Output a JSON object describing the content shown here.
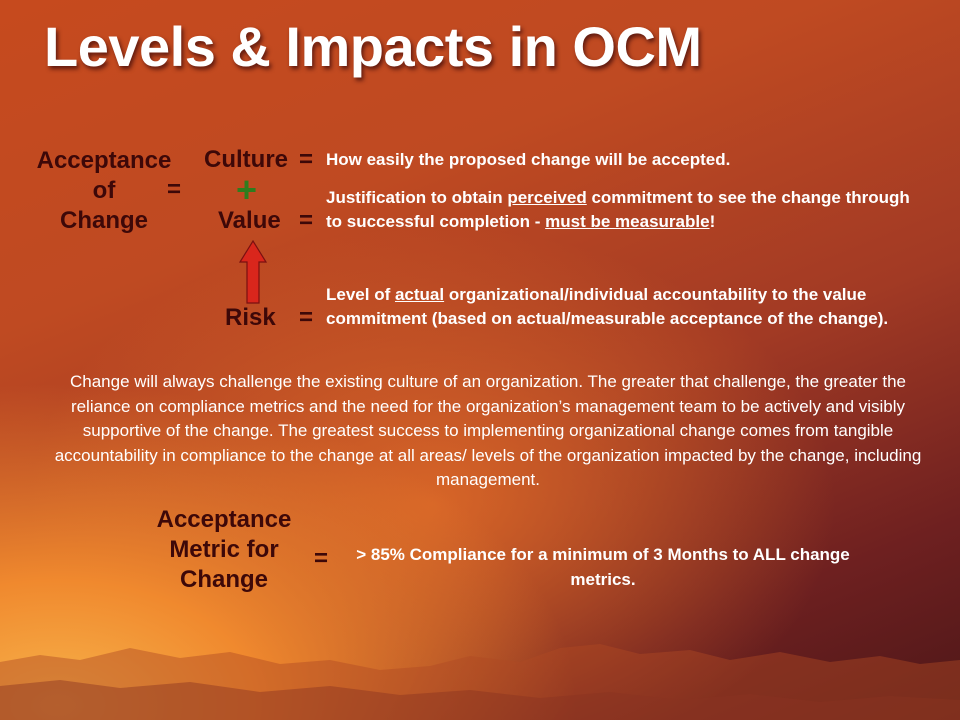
{
  "slide": {
    "title": "Levels & Impacts in OCM"
  },
  "formula": {
    "lhs_lines": [
      "Acceptance",
      "of",
      "Change"
    ],
    "lhs_equals": "=",
    "plus_symbol": "+",
    "terms": [
      {
        "label": "Culture",
        "equals": "=",
        "description": [
          {
            "text": "How easily the proposed change will be accepted.",
            "u": false
          }
        ]
      },
      {
        "label": "Value",
        "equals": "=",
        "description": [
          {
            "text": "Justification to obtain ",
            "u": false
          },
          {
            "text": "perceived",
            "u": true
          },
          {
            "text": " commitment to see the change through to successful completion - ",
            "u": false
          },
          {
            "text": "must be measurable",
            "u": true
          },
          {
            "text": "!",
            "u": false
          }
        ]
      },
      {
        "label": "Risk",
        "equals": "=",
        "description": [
          {
            "text": "Level of ",
            "u": false
          },
          {
            "text": "actual",
            "u": true
          },
          {
            "text": " organizational/individual accountability to the value commitment (based on actual/measurable acceptance of the change).",
            "u": false
          }
        ]
      }
    ],
    "arrow_color": "#d9261c"
  },
  "paragraph": "Change will always challenge the existing culture of an organization.  The greater that challenge, the greater the reliance on compliance metrics and the need for the organization’s management team to be actively and visibly supportive of the change.  The greatest success to implementing organizational change comes from tangible accountability in compliance to the change at all areas/ levels of the organization impacted by the change, including management.",
  "metric": {
    "lhs_lines": [
      "Acceptance",
      "Metric for",
      "Change"
    ],
    "equals": "=",
    "description": "> 85% Compliance for a minimum of 3 Months to ALL change metrics."
  },
  "colors": {
    "label_text": "#3d0808",
    "body_text": "#ffffff",
    "plus": "#2e7d1e",
    "arrow": "#d9261c"
  }
}
